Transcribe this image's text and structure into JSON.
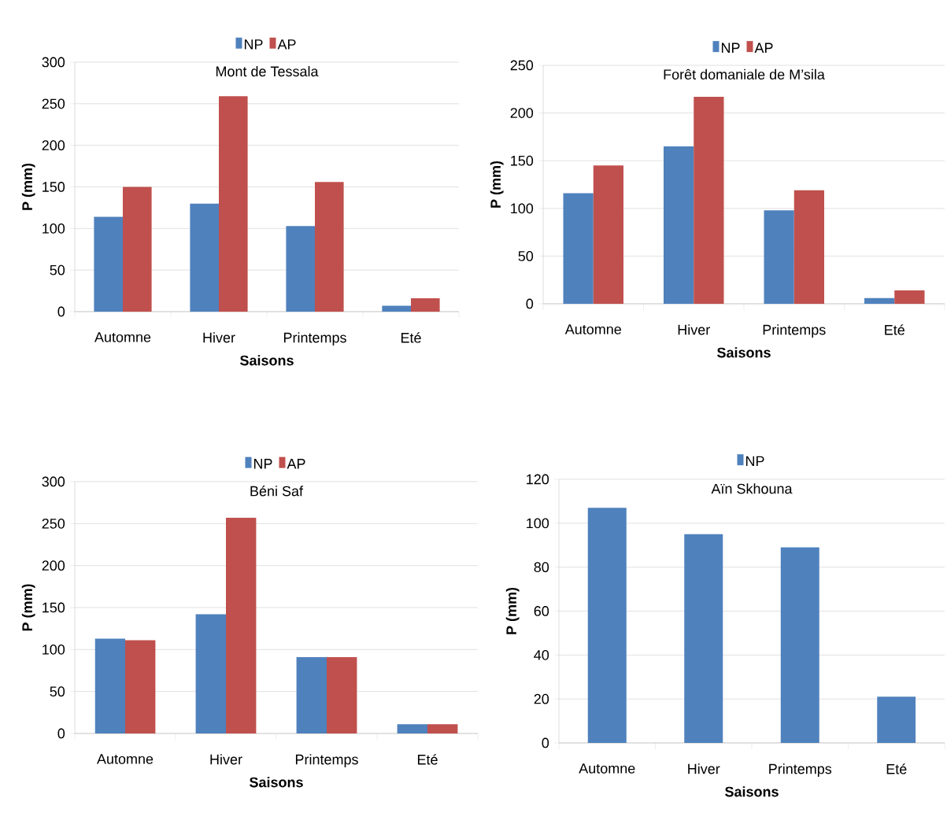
{
  "chart_data": [
    {
      "type": "bar",
      "title": "Mont de Tessala",
      "xlabel": "Saisons",
      "ylabel": "P (mm)",
      "categories": [
        "Automne",
        "Hiver",
        "Printemps",
        "Eté"
      ],
      "series": [
        {
          "name": "NP",
          "color": "#4f81bd",
          "values": [
            114,
            130,
            103,
            7
          ]
        },
        {
          "name": "AP",
          "color": "#c0504d",
          "values": [
            150,
            259,
            156,
            16
          ]
        }
      ],
      "ylim": [
        0,
        300
      ],
      "yticks": [
        0,
        50,
        100,
        150,
        200,
        250,
        300
      ],
      "grid": "y",
      "legend": "top"
    },
    {
      "type": "bar",
      "title": "Forêt domaniale de M’sila",
      "xlabel": "Saisons",
      "ylabel": "P (mm)",
      "categories": [
        "Automne",
        "Hiver",
        "Printemps",
        "Eté"
      ],
      "series": [
        {
          "name": "NP",
          "color": "#4f81bd",
          "values": [
            116,
            165,
            98,
            6
          ]
        },
        {
          "name": "AP",
          "color": "#c0504d",
          "values": [
            145,
            217,
            119,
            14
          ]
        }
      ],
      "ylim": [
        0,
        250
      ],
      "yticks": [
        0,
        50,
        100,
        150,
        200,
        250
      ],
      "grid": "y",
      "legend": "top"
    },
    {
      "type": "bar",
      "title": "Béni Saf",
      "xlabel": "Saisons",
      "ylabel": "P (mm)",
      "categories": [
        "Automne",
        "Hiver",
        "Printemps",
        "Eté"
      ],
      "series": [
        {
          "name": "NP",
          "color": "#4f81bd",
          "values": [
            113,
            142,
            91,
            11
          ]
        },
        {
          "name": "AP",
          "color": "#c0504d",
          "values": [
            111,
            257,
            91,
            11
          ]
        }
      ],
      "ylim": [
        0,
        300
      ],
      "yticks": [
        0,
        50,
        100,
        150,
        200,
        250,
        300
      ],
      "grid": "y",
      "legend": "top"
    },
    {
      "type": "bar",
      "title": "Aïn Skhouna",
      "xlabel": "Saisons",
      "ylabel": "P (mm)",
      "categories": [
        "Automne",
        "Hiver",
        "Printemps",
        "Eté"
      ],
      "series": [
        {
          "name": "NP",
          "color": "#4f81bd",
          "values": [
            107,
            95,
            89,
            21
          ]
        }
      ],
      "ylim": [
        0,
        120
      ],
      "yticks": [
        0,
        20,
        40,
        60,
        80,
        100,
        120
      ],
      "grid": "y",
      "legend": "top"
    }
  ]
}
